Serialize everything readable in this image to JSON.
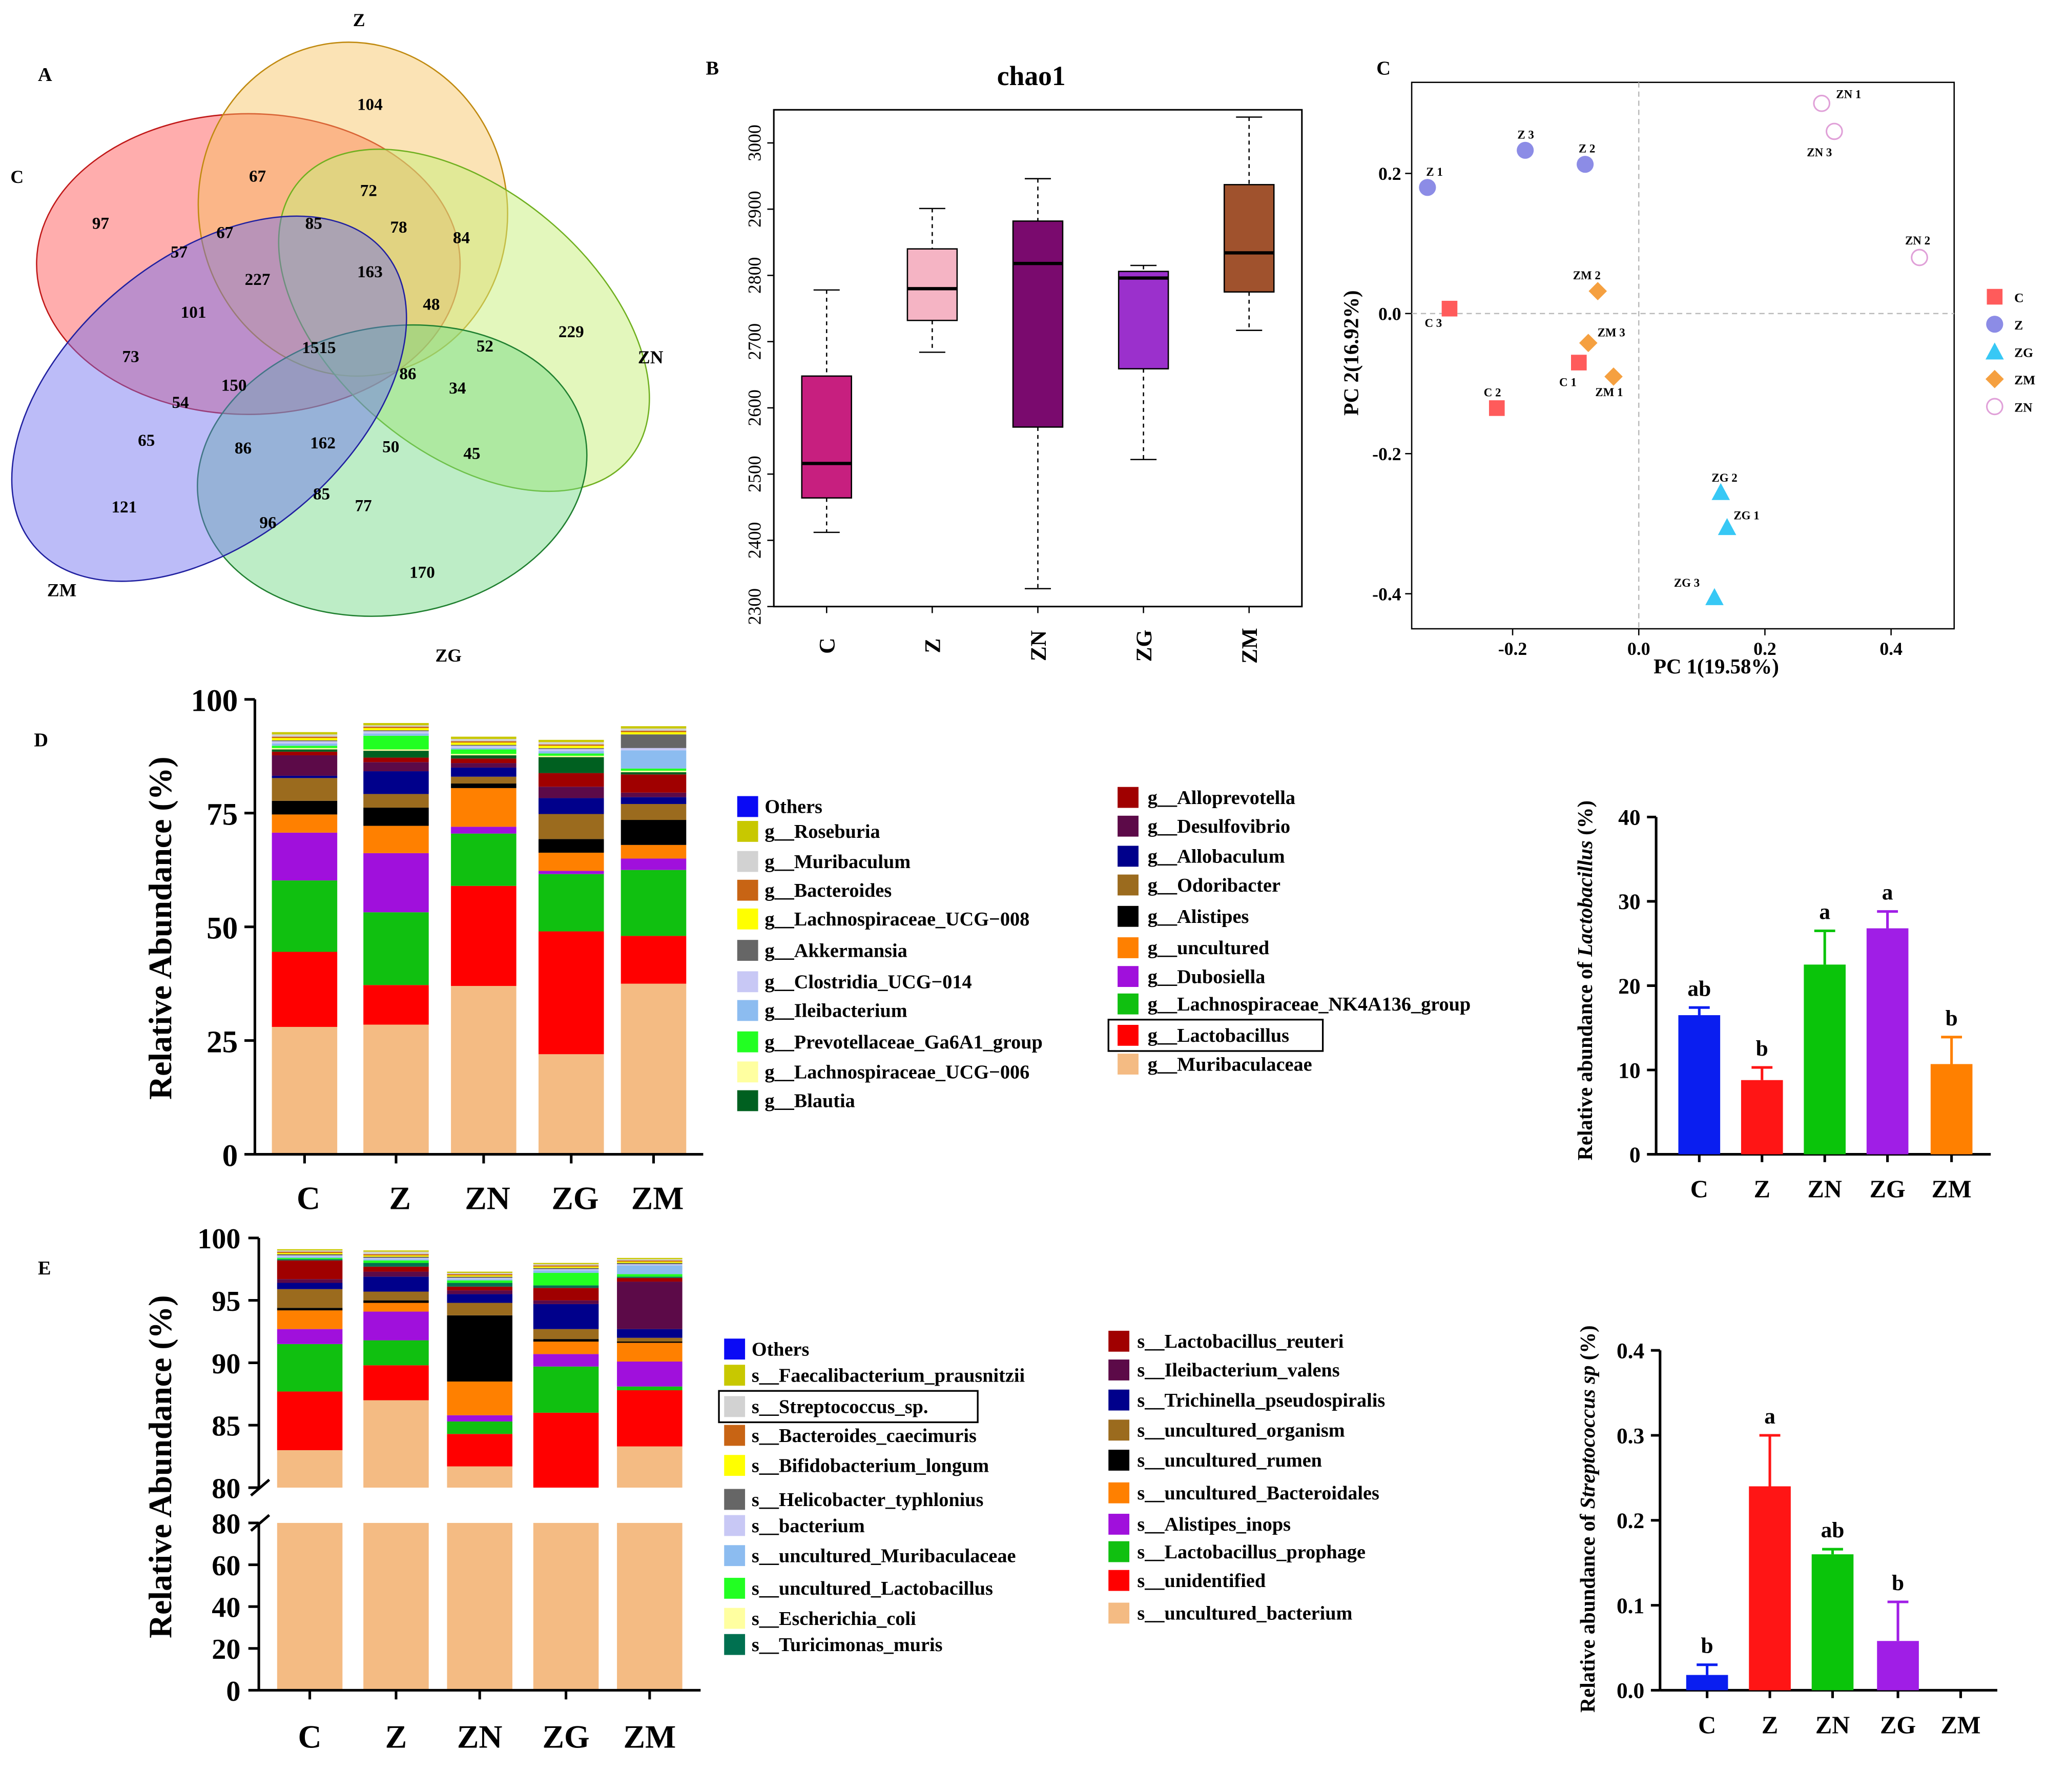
{
  "colors": {
    "C": "#ff5b5b",
    "Z": "#8c8ce6",
    "ZG": "#37c8f5",
    "ZM": "#f5a040",
    "ZN": "#e0a0d8",
    "box_C": "#c71f7f",
    "box_Z": "#f5b4c4",
    "box_ZN": "#7a0a6e",
    "box_ZG": "#9b30cc",
    "box_ZM": "#a0522d",
    "bar_C": "#0a1ef0",
    "bar_Z": "#ff1515",
    "bar_ZN": "#0ac40a",
    "bar_ZG": "#a01ee6",
    "bar_ZM": "#ff8000"
  },
  "panel_labels": {
    "A": "A",
    "B": "B",
    "C": "C",
    "D": "D",
    "E": "E"
  },
  "venn": {
    "set_labels": {
      "C": "C",
      "Z": "Z",
      "ZN": "ZN",
      "ZG": "ZG",
      "ZM": "ZM"
    },
    "counts": [
      "104",
      "67",
      "72",
      "97",
      "85",
      "78",
      "84",
      "57",
      "67",
      "227",
      "163",
      "48",
      "229",
      "101",
      "1515",
      "52",
      "73",
      "86",
      "34",
      "54",
      "150",
      "65",
      "86",
      "162",
      "50",
      "45",
      "121",
      "85",
      "77",
      "96",
      "170"
    ]
  },
  "chart_data": [
    {
      "type": "box",
      "title": "chao1",
      "categories": [
        "C",
        "Z",
        "ZN",
        "ZG",
        "ZM"
      ],
      "ylim": [
        2300,
        3050
      ],
      "yticks": [
        "2300",
        "2400",
        "2500",
        "2600",
        "2700",
        "2800",
        "2900",
        "3000"
      ],
      "boxes": [
        {
          "min": 2412,
          "q1": 2464,
          "median": 2516,
          "q3": 2648,
          "max": 2778
        },
        {
          "min": 2684,
          "q1": 2732,
          "median": 2780,
          "q3": 2840,
          "max": 2901
        },
        {
          "min": 2327,
          "q1": 2571,
          "median": 2818,
          "q3": 2882,
          "max": 2946
        },
        {
          "min": 2522,
          "q1": 2659,
          "median": 2796,
          "q3": 2806,
          "max": 2815
        },
        {
          "min": 2717,
          "q1": 2775,
          "median": 2834,
          "q3": 2937,
          "max": 3039
        }
      ]
    },
    {
      "type": "scatter",
      "title": "",
      "xlabel": "PC 1(19.58%)",
      "ylabel": "PC 2(16.92%)",
      "xlim": [
        -0.36,
        0.5
      ],
      "ylim": [
        -0.45,
        0.33
      ],
      "xticks": [
        "-0.2",
        "0.0",
        "0.2",
        "0.4"
      ],
      "yticks": [
        "-0.4",
        "-0.2",
        "0.0",
        "0.2"
      ],
      "legend": [
        "C",
        "Z",
        "ZG",
        "ZM",
        "ZN"
      ],
      "points": [
        {
          "group": "C",
          "label": "C 1",
          "x": -0.095,
          "y": -0.07
        },
        {
          "group": "C",
          "label": "C 2",
          "x": -0.225,
          "y": -0.135
        },
        {
          "group": "C",
          "label": "C 3",
          "x": -0.3,
          "y": 0.007
        },
        {
          "group": "Z",
          "label": "Z 1",
          "x": -0.335,
          "y": 0.18
        },
        {
          "group": "Z",
          "label": "Z 2",
          "x": -0.085,
          "y": 0.213
        },
        {
          "group": "Z",
          "label": "Z 3",
          "x": -0.18,
          "y": 0.233
        },
        {
          "group": "ZG",
          "label": "ZG 1",
          "x": 0.14,
          "y": -0.305
        },
        {
          "group": "ZG",
          "label": "ZG 2",
          "x": 0.13,
          "y": -0.255
        },
        {
          "group": "ZG",
          "label": "ZG 3",
          "x": 0.12,
          "y": -0.405
        },
        {
          "group": "ZM",
          "label": "ZM 1",
          "x": -0.04,
          "y": -0.09
        },
        {
          "group": "ZM",
          "label": "ZM 2",
          "x": -0.065,
          "y": 0.032
        },
        {
          "group": "ZM",
          "label": "ZM 3",
          "x": -0.08,
          "y": -0.042
        },
        {
          "group": "ZN",
          "label": "ZN 1",
          "x": 0.29,
          "y": 0.3
        },
        {
          "group": "ZN",
          "label": "ZN 2",
          "x": 0.445,
          "y": 0.08
        },
        {
          "group": "ZN",
          "label": "ZN 3",
          "x": 0.31,
          "y": 0.26
        }
      ]
    },
    {
      "type": "stacked_bar",
      "title": "",
      "ylabel": "Relative Abundance (%)",
      "categories": [
        "C",
        "Z",
        "ZN",
        "ZG",
        "ZM"
      ],
      "ylim": [
        0,
        100
      ],
      "yticks": [
        "0",
        "25",
        "50",
        "75",
        "100"
      ],
      "series": [
        {
          "name": "g__Muribaculaceae",
          "color": "#f4bb83",
          "values": [
            28,
            28.5,
            37,
            22,
            37.5
          ]
        },
        {
          "name": "g__Lactobacillus",
          "color": "#ff0000",
          "values": [
            16.5,
            8.7,
            22,
            27,
            10.5
          ]
        },
        {
          "name": "g__Lachnospiraceae_NK4A136_group",
          "color": "#10c010",
          "values": [
            15.7,
            16,
            11.5,
            12.6,
            14.5
          ]
        },
        {
          "name": "g__Dubosiella",
          "color": "#a010dc",
          "values": [
            10.5,
            13,
            1.5,
            0.7,
            2.5
          ]
        },
        {
          "name": "g__uncultured",
          "color": "#ff8000",
          "values": [
            4,
            6,
            8.5,
            4,
            3
          ]
        },
        {
          "name": "g__Alistipes",
          "color": "#000000",
          "values": [
            3,
            4,
            1,
            3,
            5.5
          ]
        },
        {
          "name": "g__Odoribacter",
          "color": "#9b6b1e",
          "values": [
            5,
            3,
            1.5,
            5.5,
            3.5
          ]
        },
        {
          "name": "g__Allobaculum",
          "color": "#00008b",
          "values": [
            0.5,
            5,
            2,
            3.5,
            1.5
          ]
        },
        {
          "name": "g__Desulfovibrio",
          "color": "#5c0a48",
          "values": [
            4.5,
            2,
            1,
            2.5,
            1
          ]
        },
        {
          "name": "g__Alloprevotella",
          "color": "#a00000",
          "values": [
            0.8,
            1,
            1,
            3,
            4
          ]
        },
        {
          "name": "g__Blautia",
          "color": "#006020",
          "values": [
            0.5,
            1.5,
            0.7,
            3.5,
            0.5
          ]
        },
        {
          "name": "g__Lachnospiraceae_UCG-006",
          "color": "#ffffa0",
          "values": [
            0.3,
            0.3,
            0.3,
            0.3,
            0.3
          ]
        },
        {
          "name": "g__Prevotellaceae_Ga6A1_group",
          "color": "#22ff22",
          "values": [
            0.5,
            3,
            1,
            0.5,
            0.5
          ]
        },
        {
          "name": "g__Ileibacterium",
          "color": "#8cbcf0",
          "values": [
            0.5,
            0.5,
            0.3,
            0.5,
            4
          ]
        },
        {
          "name": "g__Clostridia_UCG-014",
          "color": "#c8c8f5",
          "values": [
            0.5,
            0.5,
            0.5,
            0.5,
            0.5
          ]
        },
        {
          "name": "g__Akkermansia",
          "color": "#666666",
          "values": [
            0.2,
            0.2,
            0.2,
            0.2,
            3
          ]
        },
        {
          "name": "g__Lachnospiraceae_UCG-008",
          "color": "#ffff00",
          "values": [
            0.5,
            0.5,
            0.5,
            0.5,
            0.5
          ]
        },
        {
          "name": "g__Bacteroides",
          "color": "#c86414",
          "values": [
            0.3,
            0.3,
            0.3,
            0.3,
            0.3
          ]
        },
        {
          "name": "g__Muribaculum",
          "color": "#d2d2d2",
          "values": [
            0.5,
            0.3,
            0.5,
            0.5,
            0.5
          ]
        },
        {
          "name": "g__Roseburia",
          "color": "#c8c800",
          "values": [
            0.5,
            0.5,
            0.5,
            0.5,
            0.5
          ]
        },
        {
          "name": "Others",
          "color": "#0a0af5",
          "values": [
            0,
            0,
            0,
            0,
            0
          ]
        }
      ]
    },
    {
      "type": "bar",
      "ylabel_prefix": "Relative abundance of ",
      "ylabel_italic": "Lactobacillus",
      "ylabel_suffix": " (%)",
      "categories": [
        "C",
        "Z",
        "ZN",
        "ZG",
        "ZM"
      ],
      "values": [
        16.5,
        8.8,
        22.5,
        26.8,
        10.7
      ],
      "errors": [
        0.9,
        1.5,
        4,
        2,
        3.2
      ],
      "letters": [
        "ab",
        "b",
        "a",
        "a",
        "b"
      ],
      "ylim": [
        0,
        40
      ],
      "yticks": [
        "0",
        "10",
        "20",
        "30",
        "40"
      ]
    },
    {
      "type": "stacked_bar",
      "ylabel": "Relative Abundance (%)",
      "categories": [
        "C",
        "Z",
        "ZN",
        "ZG",
        "ZM"
      ],
      "ylim_upper": [
        80,
        100
      ],
      "ylim_lower": [
        0,
        80
      ],
      "yticks_upper": [
        "80",
        "85",
        "90",
        "95",
        "100"
      ],
      "yticks_lower": [
        "0",
        "20",
        "40",
        "60",
        "80"
      ],
      "series": [
        {
          "name": "s__uncultured_bacterium",
          "color": "#f4bb83",
          "values": [
            83,
            87,
            81.7,
            80,
            83.3
          ]
        },
        {
          "name": "s__unidentified",
          "color": "#ff0000",
          "values": [
            4.7,
            2.8,
            2.6,
            6,
            4.5
          ]
        },
        {
          "name": "s__Lactobacillus_prophage",
          "color": "#10c010",
          "values": [
            3.8,
            2,
            1,
            3.7,
            0.3
          ]
        },
        {
          "name": "s__Alistipes_inops",
          "color": "#a010dc",
          "values": [
            1.2,
            2.3,
            0.5,
            1,
            2
          ]
        },
        {
          "name": "s__uncultured_Bacteroidales",
          "color": "#ff8000",
          "values": [
            1.5,
            0.7,
            2.7,
            1,
            1.5
          ]
        },
        {
          "name": "s__uncultured_rumen",
          "color": "#000000",
          "values": [
            0.2,
            0.2,
            5.3,
            0.2,
            0.1
          ]
        },
        {
          "name": "s__uncultured_organism",
          "color": "#9b6b1e",
          "values": [
            1.5,
            0.7,
            1,
            0.8,
            0.3
          ]
        },
        {
          "name": "s__Trichinella_pseudospiralis",
          "color": "#00008b",
          "values": [
            0.5,
            1.2,
            0.7,
            2,
            0.7
          ]
        },
        {
          "name": "s__Ileibacterium_valens",
          "color": "#5c0a48",
          "values": [
            0.3,
            0.4,
            0.3,
            0.3,
            3.8
          ]
        },
        {
          "name": "s__Lactobacillus_reuteri",
          "color": "#a00000",
          "values": [
            1.5,
            0.4,
            0.3,
            1,
            0.3
          ]
        },
        {
          "name": "s__Turicimonas_muris",
          "color": "#007050",
          "values": [
            0.1,
            0.3,
            0.3,
            0.2,
            0.1
          ]
        },
        {
          "name": "s__Escherichia_coli",
          "color": "#ffffa0",
          "values": [
            0,
            0,
            0,
            0,
            0
          ]
        },
        {
          "name": "s__uncultured_Lactobacillus",
          "color": "#22ff22",
          "values": [
            0.1,
            0.2,
            0.2,
            1,
            0.2
          ]
        },
        {
          "name": "s__uncultured_Muribaculaceae",
          "color": "#8cbcf0",
          "values": [
            0.1,
            0.1,
            0.1,
            0.2,
            0.7
          ]
        },
        {
          "name": "s__bacterium",
          "color": "#c8c8f5",
          "values": [
            0.1,
            0.1,
            0.1,
            0.1,
            0.1
          ]
        },
        {
          "name": "s__Helicobacter_typhlonius",
          "color": "#666666",
          "values": [
            0.1,
            0.1,
            0.1,
            0.1,
            0.1
          ]
        },
        {
          "name": "s__Bifidobacterium_longum",
          "color": "#ffff00",
          "values": [
            0.1,
            0.1,
            0.1,
            0.1,
            0.1
          ]
        },
        {
          "name": "s__Bacteroides_caecimuris",
          "color": "#c86414",
          "values": [
            0.1,
            0.1,
            0.1,
            0.1,
            0.1
          ]
        },
        {
          "name": "s__Streptococcus_sp.",
          "color": "#d2d2d2",
          "values": [
            0.1,
            0.2,
            0.1,
            0.1,
            0.1
          ]
        },
        {
          "name": "s__Faecalibacterium_prausnitzii",
          "color": "#c8c800",
          "values": [
            0.1,
            0.1,
            0.1,
            0.1,
            0.1
          ]
        },
        {
          "name": "Others",
          "color": "#0a0af5",
          "values": [
            0,
            0,
            0,
            0,
            0
          ]
        }
      ]
    },
    {
      "type": "bar",
      "ylabel_prefix": "Relative abundance of ",
      "ylabel_italic": "Streptococcus sp",
      "ylabel_suffix": " (%)",
      "categories": [
        "C",
        "Z",
        "ZN",
        "ZG",
        "ZM"
      ],
      "values": [
        0.018,
        0.24,
        0.16,
        0.058,
        0
      ],
      "errors": [
        0.012,
        0.06,
        0.006,
        0.046,
        0
      ],
      "letters": [
        "b",
        "a",
        "ab",
        "b",
        ""
      ],
      "ylim": [
        0,
        0.4
      ],
      "yticks": [
        "0.0",
        "0.1",
        "0.2",
        "0.3",
        "0.4"
      ]
    }
  ],
  "legend_d_left": [
    "Others",
    "g__Roseburia",
    "g__Muribaculum",
    "g__Bacteroides",
    "g__Lachnospiraceae_UCG-008",
    "g__Akkermansia",
    "g__Clostridia_UCG-014",
    "g__Ileibacterium",
    "g__Prevotellaceae_Ga6A1_group",
    "g__Lachnospiraceae_UCG-006",
    "g__Blautia"
  ],
  "legend_d_right": [
    "g__Alloprevotella",
    "g__Desulfovibrio",
    "g__Allobaculum",
    "g__Odoribacter",
    "g__Alistipes",
    "g__uncultured",
    "g__Dubosiella",
    "g__Lachnospiraceae_NK4A136_group",
    "g__Lactobacillus",
    "g__Muribaculaceae"
  ],
  "legend_e_left": [
    "Others",
    "s__Faecalibacterium_prausnitzii",
    "s__Streptococcus_sp.",
    "s__Bacteroides_caecimuris",
    "s__Bifidobacterium_longum",
    "s__Helicobacter_typhlonius",
    "s__bacterium",
    "s__uncultured_Muribaculaceae",
    "s__uncultured_Lactobacillus",
    "s__Escherichia_coli",
    "s__Turicimonas_muris"
  ],
  "legend_e_right": [
    "s__Lactobacillus_reuteri",
    "s__Ileibacterium_valens",
    "s__Trichinella_pseudospiralis",
    "s__uncultured_organism",
    "s__uncultured_rumen",
    "s__uncultured_Bacteroidales",
    "s__Alistipes_inops",
    "s__Lactobacillus_prophage",
    "s__unidentified",
    "s__uncultured_bacterium"
  ]
}
